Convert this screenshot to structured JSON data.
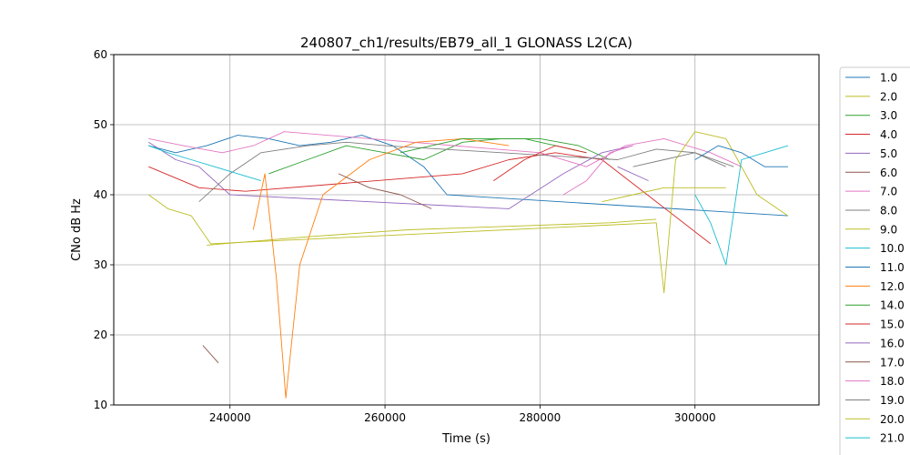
{
  "chart_data": {
    "type": "line",
    "title": "240807_ch1/results/EB79_all_1 GLONASS L2(CA)",
    "xlabel": "Time (s)",
    "ylabel": "CNo dB Hz",
    "xlim": [
      225000,
      316000
    ],
    "ylim": [
      10,
      60
    ],
    "x_ticks": [
      240000,
      260000,
      280000,
      300000
    ],
    "x_tick_labels": [
      "240000",
      "260000",
      "280000",
      "300000"
    ],
    "y_ticks": [
      10,
      20,
      30,
      40,
      50,
      60
    ],
    "y_tick_labels": [
      "10",
      "20",
      "30",
      "40",
      "50",
      "60"
    ],
    "grid": true,
    "legend_position": "right, outside plot",
    "series": [
      {
        "name": "1.0",
        "color": "#1f77b4",
        "x": [
          229500,
          233000,
          237000,
          241000,
          245000,
          249000,
          253000,
          257000,
          261000,
          265000,
          268000,
          312000
        ],
        "y": [
          47,
          46,
          47,
          48.5,
          48,
          47,
          47.5,
          48.5,
          47,
          44,
          40,
          37
        ]
      },
      {
        "name": "2.0",
        "color": "#bcbd22",
        "x": [
          237000,
          250000,
          263000,
          276000,
          289000,
          295000
        ],
        "y": [
          32.8,
          34,
          35,
          35.5,
          36,
          36.5
        ]
      },
      {
        "name": "3.0",
        "color": "#2ca02c",
        "x": [
          245000,
          250000,
          255000,
          260000,
          265000,
          270000,
          275000,
          280000,
          285000,
          289000
        ],
        "y": [
          43,
          45,
          47,
          46,
          45,
          47.5,
          48,
          48,
          47,
          45
        ]
      },
      {
        "name": "4.0",
        "color": "#d62728",
        "x": [
          229500,
          236000,
          242000,
          270000,
          276000,
          282000,
          288000,
          302000
        ],
        "y": [
          44,
          41,
          40.5,
          43,
          45,
          46,
          45,
          33
        ]
      },
      {
        "name": "5.0",
        "color": "#9467bd",
        "x": [
          229500,
          233000,
          236000,
          240000,
          276000,
          283000,
          288000,
          292000
        ],
        "y": [
          47.5,
          45,
          44,
          40,
          38,
          43,
          46,
          47
        ]
      },
      {
        "name": "6.0",
        "color": "#8c564b",
        "x": [
          236500,
          238500
        ],
        "y": [
          18.5,
          16
        ]
      },
      {
        "name": "7.0",
        "color": "#e377c2",
        "x": [
          229500,
          234000,
          239000,
          243000,
          247000,
          280000,
          286000,
          291000,
          296000,
          302000,
          306000
        ],
        "y": [
          48,
          47,
          46,
          47,
          49,
          46,
          44,
          47,
          48,
          46,
          44
        ]
      },
      {
        "name": "8.0",
        "color": "#7f7f7f",
        "x": [
          236000,
          240000,
          244000,
          250000,
          255000,
          260000,
          290000,
          295000,
          300000,
          305000
        ],
        "y": [
          39,
          43,
          46,
          47,
          47.5,
          47,
          45,
          46.5,
          46,
          44
        ]
      },
      {
        "name": "9.0",
        "color": "#bcbd22",
        "x": [
          229500,
          232000,
          235000,
          237500,
          295000,
          296000,
          297500,
          300000,
          304000,
          308000,
          312000
        ],
        "y": [
          40,
          38,
          37,
          33,
          36,
          26,
          45,
          49,
          48,
          40,
          37
        ]
      },
      {
        "name": "10.0",
        "color": "#17becf",
        "x": [
          300000,
          302000,
          304000,
          306000,
          309000,
          312000
        ],
        "y": [
          40,
          36,
          30,
          45,
          46,
          47
        ]
      },
      {
        "name": "11.0",
        "color": "#1f77b4",
        "x": [
          300000,
          303000,
          306000,
          309000,
          312000
        ],
        "y": [
          45,
          47,
          46,
          44,
          44
        ]
      },
      {
        "name": "12.0",
        "color": "#ff7f0e",
        "x": [
          243000,
          244500,
          246000,
          247200,
          249000,
          252000,
          258000,
          264000,
          270000,
          276000
        ],
        "y": [
          35,
          43,
          28,
          11,
          30,
          40,
          45,
          47.5,
          48,
          47
        ]
      },
      {
        "name": "14.0",
        "color": "#2ca02c",
        "x": [
          262000,
          266000,
          270000,
          274000,
          278000,
          282000,
          286000
        ],
        "y": [
          46,
          47,
          48,
          48,
          48,
          47,
          46
        ]
      },
      {
        "name": "15.0",
        "color": "#d62728",
        "x": [
          274000,
          278000,
          282000,
          286000
        ],
        "y": [
          42,
          45,
          47,
          46
        ]
      },
      {
        "name": "16.0",
        "color": "#9467bd",
        "x": [
          290000,
          294000
        ],
        "y": [
          44,
          42
        ]
      },
      {
        "name": "17.0",
        "color": "#8c564b",
        "x": [
          254000,
          258000,
          262000,
          266000
        ],
        "y": [
          43,
          41,
          40,
          38
        ]
      },
      {
        "name": "18.0",
        "color": "#e377c2",
        "x": [
          283000,
          286000,
          289000,
          292000
        ],
        "y": [
          40,
          42,
          46,
          47
        ]
      },
      {
        "name": "19.0",
        "color": "#7f7f7f",
        "x": [
          292000,
          296000,
          300000,
          304000
        ],
        "y": [
          44,
          45,
          46,
          44
        ]
      },
      {
        "name": "20.0",
        "color": "#bcbd22",
        "x": [
          288000,
          292000,
          296000,
          300000,
          304000
        ],
        "y": [
          39,
          40,
          41,
          41,
          41
        ]
      },
      {
        "name": "21.0",
        "color": "#17becf",
        "x": [
          229500,
          232000,
          235000,
          238000,
          241000,
          244000
        ],
        "y": [
          47,
          46,
          45,
          44,
          43,
          42
        ]
      }
    ]
  }
}
